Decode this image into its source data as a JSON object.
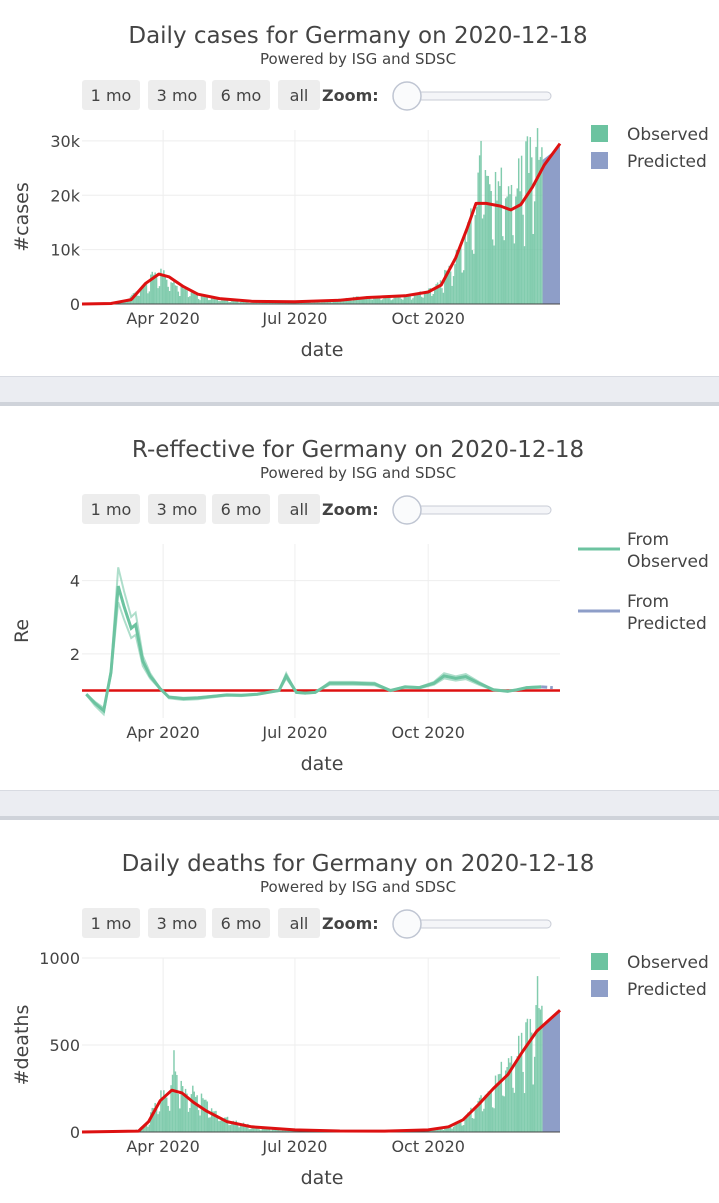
{
  "subtitle": "Powered by ISG and SDSC",
  "buttons": [
    "1 mo",
    "3 mo",
    "6 mo",
    "all"
  ],
  "zoom_label": "Zoom:",
  "x_label": "date",
  "x_ticks": [
    "Apr 2020",
    "Jul 2020",
    "Oct 2020"
  ],
  "colors": {
    "observed": "#6cc3a0",
    "predicted": "#8e9ec8",
    "fit": "#dd1111",
    "grid": "#eeeeee"
  },
  "chart_data": [
    {
      "type": "bar",
      "title": "Daily cases for Germany on 2020-12-18",
      "ylabel": "#cases",
      "xlabel": "date",
      "x_range": [
        "2020-02-05",
        "2020-12-31"
      ],
      "ylim": [
        0,
        32000
      ],
      "y_ticks": [
        0,
        10000,
        20000,
        30000
      ],
      "y_tick_labels": [
        "0",
        "10k",
        "20k",
        "30k"
      ],
      "legend": [
        "Observed",
        "Predicted"
      ],
      "observed_envelope": [
        [
          "2020-02-05",
          0
        ],
        [
          "2020-02-25",
          0
        ],
        [
          "2020-03-05",
          500
        ],
        [
          "2020-03-15",
          3500
        ],
        [
          "2020-03-25",
          6500
        ],
        [
          "2020-04-01",
          6600
        ],
        [
          "2020-04-05",
          5500
        ],
        [
          "2020-04-15",
          3500
        ],
        [
          "2020-04-25",
          2000
        ],
        [
          "2020-05-10",
          900
        ],
        [
          "2020-06-01",
          500
        ],
        [
          "2020-06-20",
          700
        ],
        [
          "2020-07-01",
          400
        ],
        [
          "2020-07-20",
          600
        ],
        [
          "2020-08-10",
          1400
        ],
        [
          "2020-08-25",
          1500
        ],
        [
          "2020-09-10",
          1600
        ],
        [
          "2020-09-25",
          2400
        ],
        [
          "2020-10-05",
          3500
        ],
        [
          "2020-10-15",
          7500
        ],
        [
          "2020-10-25",
          14000
        ],
        [
          "2020-11-01",
          20000
        ],
        [
          "2020-11-06",
          31500
        ],
        [
          "2020-11-15",
          26000
        ],
        [
          "2020-11-25",
          25000
        ],
        [
          "2020-12-05",
          29500
        ],
        [
          "2020-12-13",
          33500
        ],
        [
          "2020-12-18",
          31000
        ]
      ],
      "predicted_range": [
        "2020-12-19",
        "2020-12-31"
      ],
      "predicted_envelope": [
        [
          "2020-12-19",
          26500
        ],
        [
          "2020-12-31",
          29000
        ]
      ],
      "fit_curve": [
        [
          "2020-02-05",
          0
        ],
        [
          "2020-02-25",
          100
        ],
        [
          "2020-03-10",
          800
        ],
        [
          "2020-03-20",
          3800
        ],
        [
          "2020-03-29",
          5500
        ],
        [
          "2020-04-05",
          5000
        ],
        [
          "2020-04-15",
          3200
        ],
        [
          "2020-04-25",
          1800
        ],
        [
          "2020-05-10",
          1000
        ],
        [
          "2020-06-01",
          500
        ],
        [
          "2020-07-01",
          400
        ],
        [
          "2020-08-01",
          700
        ],
        [
          "2020-08-20",
          1200
        ],
        [
          "2020-09-15",
          1500
        ],
        [
          "2020-10-01",
          2200
        ],
        [
          "2020-10-10",
          3500
        ],
        [
          "2020-10-20",
          8500
        ],
        [
          "2020-10-28",
          14000
        ],
        [
          "2020-11-03",
          18500
        ],
        [
          "2020-11-10",
          18500
        ],
        [
          "2020-11-20",
          18000
        ],
        [
          "2020-11-27",
          17300
        ],
        [
          "2020-12-04",
          18300
        ],
        [
          "2020-12-12",
          21500
        ],
        [
          "2020-12-20",
          25500
        ],
        [
          "2020-12-31",
          29500
        ]
      ]
    },
    {
      "type": "line",
      "title": "R-effective for Germany on 2020-12-18",
      "ylabel": "Re",
      "xlabel": "date",
      "x_range": [
        "2020-02-05",
        "2020-12-31"
      ],
      "ylim": [
        0.25,
        5.0
      ],
      "y_ticks": [
        2,
        4
      ],
      "y_tick_labels": [
        "2",
        "4"
      ],
      "legend": [
        "From Observed",
        "From Predicted"
      ],
      "reference_line": 1.0,
      "series": [
        {
          "name": "From Observed",
          "points": [
            [
              "2020-02-08",
              0.9
            ],
            [
              "2020-02-14",
              0.65
            ],
            [
              "2020-02-20",
              0.45
            ],
            [
              "2020-02-25",
              1.5
            ],
            [
              "2020-03-01",
              3.85
            ],
            [
              "2020-03-05",
              3.3
            ],
            [
              "2020-03-10",
              2.7
            ],
            [
              "2020-03-13",
              2.8
            ],
            [
              "2020-03-18",
              1.8
            ],
            [
              "2020-03-23",
              1.4
            ],
            [
              "2020-03-30",
              1.05
            ],
            [
              "2020-04-05",
              0.82
            ],
            [
              "2020-04-15",
              0.78
            ],
            [
              "2020-04-25",
              0.8
            ],
            [
              "2020-05-05",
              0.84
            ],
            [
              "2020-05-15",
              0.88
            ],
            [
              "2020-05-25",
              0.87
            ],
            [
              "2020-06-05",
              0.9
            ],
            [
              "2020-06-20",
              1.0
            ],
            [
              "2020-06-25",
              1.4
            ],
            [
              "2020-07-02",
              0.95
            ],
            [
              "2020-07-08",
              0.93
            ],
            [
              "2020-07-15",
              0.95
            ],
            [
              "2020-07-25",
              1.2
            ],
            [
              "2020-08-10",
              1.2
            ],
            [
              "2020-08-25",
              1.18
            ],
            [
              "2020-09-05",
              1.0
            ],
            [
              "2020-09-15",
              1.1
            ],
            [
              "2020-09-25",
              1.08
            ],
            [
              "2020-10-05",
              1.2
            ],
            [
              "2020-10-12",
              1.4
            ],
            [
              "2020-10-20",
              1.33
            ],
            [
              "2020-10-27",
              1.38
            ],
            [
              "2020-11-05",
              1.2
            ],
            [
              "2020-11-15",
              1.02
            ],
            [
              "2020-11-25",
              0.98
            ],
            [
              "2020-12-01",
              1.02
            ],
            [
              "2020-12-08",
              1.08
            ],
            [
              "2020-12-18",
              1.1
            ]
          ]
        },
        {
          "name": "From Predicted",
          "points": [
            [
              "2020-12-18",
              1.1
            ],
            [
              "2020-12-26",
              1.08
            ]
          ]
        }
      ]
    },
    {
      "type": "bar",
      "title": "Daily deaths for Germany on 2020-12-18",
      "ylabel": "#deaths",
      "xlabel": "date",
      "x_range": [
        "2020-02-05",
        "2020-12-31"
      ],
      "ylim": [
        0,
        1000
      ],
      "y_ticks": [
        0,
        500,
        1000
      ],
      "y_tick_labels": [
        "0",
        "500",
        "1000"
      ],
      "legend": [
        "Observed",
        "Predicted"
      ],
      "observed_envelope": [
        [
          "2020-02-05",
          0
        ],
        [
          "2020-03-10",
          0
        ],
        [
          "2020-03-20",
          60
        ],
        [
          "2020-03-28",
          230
        ],
        [
          "2020-04-05",
          280
        ],
        [
          "2020-04-08",
          510
        ],
        [
          "2020-04-15",
          280
        ],
        [
          "2020-04-25",
          270
        ],
        [
          "2020-05-05",
          130
        ],
        [
          "2020-05-20",
          70
        ],
        [
          "2020-06-05",
          30
        ],
        [
          "2020-07-01",
          12
        ],
        [
          "2020-08-01",
          10
        ],
        [
          "2020-09-01",
          8
        ],
        [
          "2020-10-01",
          15
        ],
        [
          "2020-10-15",
          40
        ],
        [
          "2020-10-25",
          90
        ],
        [
          "2020-11-05",
          210
        ],
        [
          "2020-11-15",
          330
        ],
        [
          "2020-11-25",
          490
        ],
        [
          "2020-12-05",
          620
        ],
        [
          "2020-12-12",
          700
        ],
        [
          "2020-12-15",
          900
        ],
        [
          "2020-12-18",
          780
        ]
      ],
      "predicted_range": [
        "2020-12-19",
        "2020-12-31"
      ],
      "predicted_envelope": [
        [
          "2020-12-19",
          620
        ],
        [
          "2020-12-31",
          700
        ]
      ],
      "fit_curve": [
        [
          "2020-02-05",
          0
        ],
        [
          "2020-03-15",
          5
        ],
        [
          "2020-03-22",
          60
        ],
        [
          "2020-03-30",
          180
        ],
        [
          "2020-04-07",
          240
        ],
        [
          "2020-04-14",
          225
        ],
        [
          "2020-04-22",
          170
        ],
        [
          "2020-05-01",
          120
        ],
        [
          "2020-05-15",
          60
        ],
        [
          "2020-06-01",
          30
        ],
        [
          "2020-07-01",
          12
        ],
        [
          "2020-08-01",
          6
        ],
        [
          "2020-09-01",
          5
        ],
        [
          "2020-10-01",
          12
        ],
        [
          "2020-10-15",
          30
        ],
        [
          "2020-10-25",
          70
        ],
        [
          "2020-11-05",
          160
        ],
        [
          "2020-11-15",
          250
        ],
        [
          "2020-11-25",
          330
        ],
        [
          "2020-12-05",
          460
        ],
        [
          "2020-12-15",
          580
        ],
        [
          "2020-12-31",
          700
        ]
      ]
    }
  ]
}
